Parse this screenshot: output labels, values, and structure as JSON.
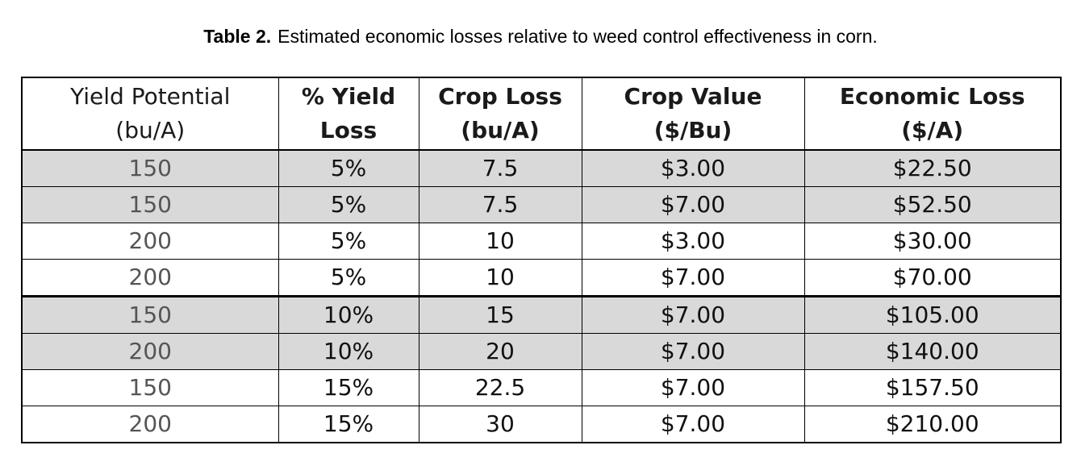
{
  "caption": {
    "label": "Table 2.",
    "text": "Estimated economic losses relative to weed control effectiveness in corn."
  },
  "colors": {
    "shaded_row": "#d9d9d9",
    "border": "#000000"
  },
  "chart_data": {
    "type": "table",
    "title": "Table 2.  Estimated economic losses relative to weed control effectiveness in corn.",
    "columns": [
      "Yield Potential (bu/A)",
      "% Yield Loss",
      "Crop Loss (bu/A)",
      "Crop Value ($/Bu)",
      "Economic Loss ($/A)"
    ],
    "header_lines": [
      [
        "Yield Potential",
        "(bu/A)"
      ],
      [
        "% Yield",
        "Loss"
      ],
      [
        "Crop Loss",
        "(bu/A)"
      ],
      [
        "Crop Value",
        "($/Bu)"
      ],
      [
        "Economic Loss",
        "($/A)"
      ]
    ],
    "rows": [
      [
        "150",
        "5%",
        "7.5",
        "$3.00",
        "$22.50"
      ],
      [
        "150",
        "5%",
        "7.5",
        "$7.00",
        "$52.50"
      ],
      [
        "200",
        "5%",
        "10",
        "$3.00",
        "$30.00"
      ],
      [
        "200",
        "5%",
        "10",
        "$7.00",
        "$70.00"
      ],
      [
        "150",
        "10%",
        "15",
        "$7.00",
        "$105.00"
      ],
      [
        "200",
        "10%",
        "20",
        "$7.00",
        "$140.00"
      ],
      [
        "150",
        "15%",
        "22.5",
        "$7.00",
        "$157.50"
      ],
      [
        "200",
        "15%",
        "30",
        "$7.00",
        "$210.00"
      ]
    ],
    "shaded_rows": [
      true,
      true,
      false,
      false,
      true,
      true,
      false,
      false
    ],
    "thick_border_before_row": 4
  }
}
